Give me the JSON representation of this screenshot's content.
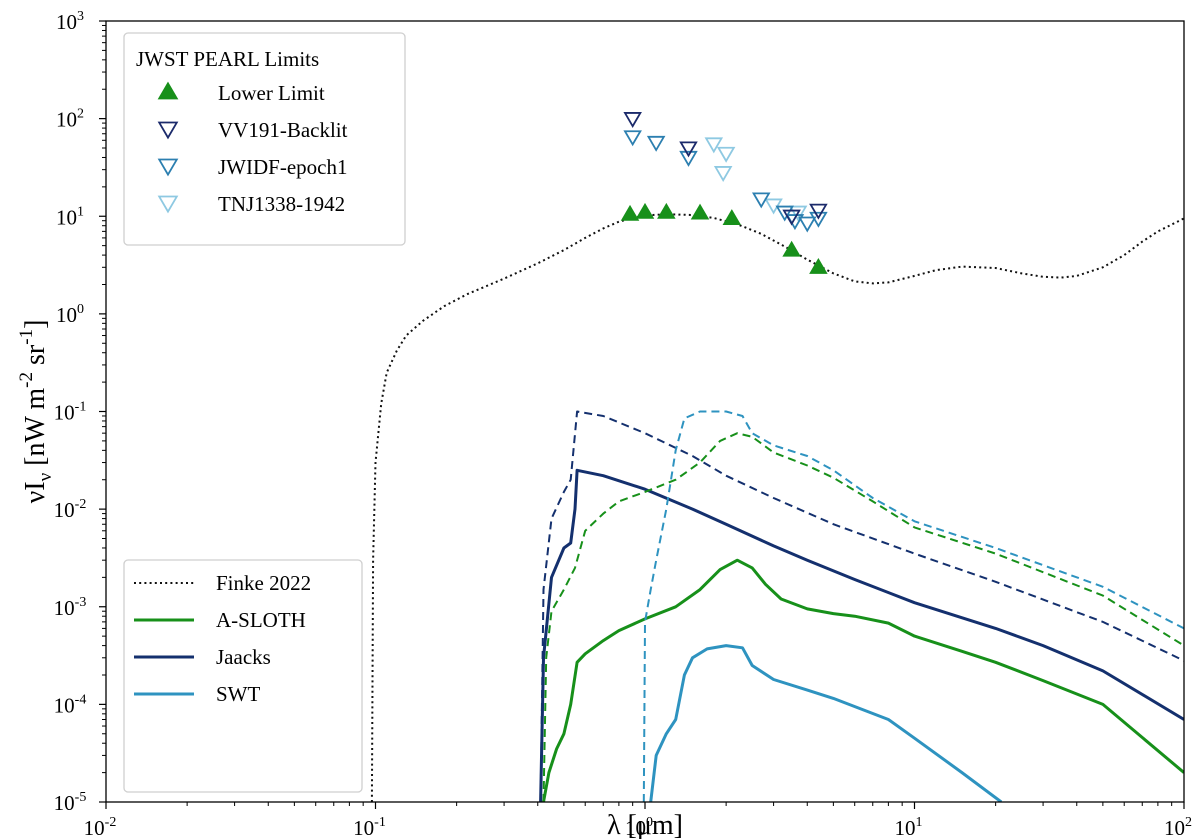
{
  "chart_data": {
    "type": "line",
    "xscale": "log",
    "yscale": "log",
    "xlim": [
      0.01,
      100
    ],
    "ylim": [
      1e-05,
      1000
    ],
    "xlabel": "λ [μm]",
    "ylabel": "νI_ν [nW m^-2 sr^-1]",
    "x_ticks": [
      {
        "base": "10",
        "exp": "-2",
        "value": 0.01
      },
      {
        "base": "10",
        "exp": "-1",
        "value": 0.1
      },
      {
        "base": "10",
        "exp": "0",
        "value": 1
      },
      {
        "base": "10",
        "exp": "1",
        "value": 10
      },
      {
        "base": "10",
        "exp": "2",
        "value": 100
      }
    ],
    "y_ticks": [
      {
        "base": "10",
        "exp": "-5",
        "value": 1e-05
      },
      {
        "base": "10",
        "exp": "-4",
        "value": 0.0001
      },
      {
        "base": "10",
        "exp": "-3",
        "value": 0.001
      },
      {
        "base": "10",
        "exp": "-2",
        "value": 0.01
      },
      {
        "base": "10",
        "exp": "-1",
        "value": 0.1
      },
      {
        "base": "10",
        "exp": "0",
        "value": 1
      },
      {
        "base": "10",
        "exp": "1",
        "value": 10
      },
      {
        "base": "10",
        "exp": "2",
        "value": 100
      },
      {
        "base": "10",
        "exp": "3",
        "value": 1000
      }
    ],
    "legend_top": {
      "title": "JWST PEARL Limits",
      "placement": "upper-left",
      "entries": [
        "Lower Limit",
        "VV191-Backlit",
        "JWIDF-epoch1",
        "TNJ1338-1942"
      ]
    },
    "legend_bottom": {
      "placement": "lower-left",
      "entries": [
        "Finke 2022",
        "A-SLOTH",
        "Jaacks",
        "SWT"
      ]
    },
    "colors": {
      "finke": "#111111",
      "asloth": "#17901a",
      "jaacks": "#14306e",
      "swt": "#2e93c0",
      "vv191": "#1b2a6b",
      "jwidf": "#2c7fb0",
      "tnj": "#8ec9e2",
      "lower": "#17901a"
    },
    "series": [
      {
        "name": "Finke 2022",
        "style": "dotted",
        "color_key": "finke",
        "points": [
          [
            0.097,
            1e-05
          ],
          [
            0.098,
            0.003
          ],
          [
            0.1,
            0.03
          ],
          [
            0.105,
            0.12
          ],
          [
            0.11,
            0.25
          ],
          [
            0.12,
            0.42
          ],
          [
            0.13,
            0.6
          ],
          [
            0.15,
            0.85
          ],
          [
            0.18,
            1.2
          ],
          [
            0.22,
            1.6
          ],
          [
            0.3,
            2.3
          ],
          [
            0.4,
            3.3
          ],
          [
            0.5,
            4.5
          ],
          [
            0.6,
            6
          ],
          [
            0.7,
            7.5
          ],
          [
            0.8,
            8.8
          ],
          [
            0.9,
            9.6
          ],
          [
            1.0,
            10.2
          ],
          [
            1.2,
            10.5
          ],
          [
            1.5,
            10.3
          ],
          [
            1.8,
            9.6
          ],
          [
            2.2,
            8.3
          ],
          [
            2.7,
            6.6
          ],
          [
            3.3,
            4.9
          ],
          [
            4.0,
            3.6
          ],
          [
            5.0,
            2.6
          ],
          [
            6.0,
            2.15
          ],
          [
            7.0,
            2.05
          ],
          [
            8.0,
            2.1
          ],
          [
            10,
            2.45
          ],
          [
            12,
            2.8
          ],
          [
            15,
            3.05
          ],
          [
            20,
            2.95
          ],
          [
            25,
            2.6
          ],
          [
            30,
            2.4
          ],
          [
            35,
            2.35
          ],
          [
            40,
            2.45
          ],
          [
            50,
            3.0
          ],
          [
            60,
            4.0
          ],
          [
            70,
            5.5
          ],
          [
            80,
            7.0
          ],
          [
            100,
            9.5
          ]
        ]
      },
      {
        "name": "A-SLOTH",
        "style": "solid",
        "color_key": "asloth",
        "points": [
          [
            0.42,
            1e-05
          ],
          [
            0.44,
            2e-05
          ],
          [
            0.47,
            3.5e-05
          ],
          [
            0.5,
            5e-05
          ],
          [
            0.53,
            0.0001
          ],
          [
            0.56,
            0.00027
          ],
          [
            0.6,
            0.00033
          ],
          [
            0.7,
            0.00045
          ],
          [
            0.8,
            0.00057
          ],
          [
            1.0,
            0.00075
          ],
          [
            1.3,
            0.001
          ],
          [
            1.6,
            0.0015
          ],
          [
            1.9,
            0.0024
          ],
          [
            2.2,
            0.003
          ],
          [
            2.5,
            0.0025
          ],
          [
            2.8,
            0.0017
          ],
          [
            3.2,
            0.0012
          ],
          [
            4.0,
            0.00095
          ],
          [
            5.0,
            0.00085
          ],
          [
            6.0,
            0.0008
          ],
          [
            8.0,
            0.00068
          ],
          [
            10,
            0.0005
          ],
          [
            15,
            0.00035
          ],
          [
            20,
            0.00027
          ],
          [
            30,
            0.000175
          ],
          [
            50,
            0.0001
          ],
          [
            100,
            2e-05
          ]
        ]
      },
      {
        "name": "Jaacks",
        "style": "solid",
        "color_key": "jaacks",
        "points": [
          [
            0.41,
            1e-05
          ],
          [
            0.42,
            0.0003
          ],
          [
            0.45,
            0.002
          ],
          [
            0.5,
            0.004
          ],
          [
            0.53,
            0.0045
          ],
          [
            0.55,
            0.01
          ],
          [
            0.56,
            0.025
          ],
          [
            0.7,
            0.022
          ],
          [
            1.0,
            0.016
          ],
          [
            1.5,
            0.01
          ],
          [
            2.0,
            0.007
          ],
          [
            3.0,
            0.0042
          ],
          [
            4.0,
            0.003
          ],
          [
            6.0,
            0.0019
          ],
          [
            10,
            0.0011
          ],
          [
            20,
            0.0006
          ],
          [
            30,
            0.0004
          ],
          [
            50,
            0.00022
          ],
          [
            100,
            7e-05
          ]
        ]
      },
      {
        "name": "SWT",
        "style": "solid",
        "color_key": "swt",
        "points": [
          [
            1.05,
            1e-05
          ],
          [
            1.1,
            3e-05
          ],
          [
            1.2,
            5e-05
          ],
          [
            1.3,
            7e-05
          ],
          [
            1.4,
            0.0002
          ],
          [
            1.5,
            0.0003
          ],
          [
            1.7,
            0.00037
          ],
          [
            2.0,
            0.0004
          ],
          [
            2.3,
            0.00038
          ],
          [
            2.5,
            0.00025
          ],
          [
            3.0,
            0.00018
          ],
          [
            4.0,
            0.00014
          ],
          [
            5.0,
            0.000115
          ],
          [
            8.0,
            7e-05
          ],
          [
            10,
            4.5e-05
          ],
          [
            15,
            2e-05
          ],
          [
            21,
            1e-05
          ]
        ]
      },
      {
        "name": "A-SLOTH (dashed)",
        "style": "dashed",
        "color_key": "asloth",
        "points": [
          [
            0.42,
            1e-05
          ],
          [
            0.43,
            0.0003
          ],
          [
            0.45,
            0.0009
          ],
          [
            0.5,
            0.0015
          ],
          [
            0.55,
            0.0025
          ],
          [
            0.6,
            0.006
          ],
          [
            0.7,
            0.009
          ],
          [
            0.8,
            0.012
          ],
          [
            1.0,
            0.015
          ],
          [
            1.3,
            0.02
          ],
          [
            1.6,
            0.03
          ],
          [
            1.9,
            0.05
          ],
          [
            2.2,
            0.06
          ],
          [
            2.5,
            0.055
          ],
          [
            3.0,
            0.038
          ],
          [
            4.0,
            0.028
          ],
          [
            5.0,
            0.021
          ],
          [
            7.0,
            0.012
          ],
          [
            10,
            0.0065
          ],
          [
            20,
            0.0035
          ],
          [
            50,
            0.0013
          ],
          [
            100,
            0.0004
          ]
        ]
      },
      {
        "name": "Jaacks (dashed)",
        "style": "dashed",
        "color_key": "jaacks",
        "points": [
          [
            0.41,
            1e-05
          ],
          [
            0.42,
            0.0015
          ],
          [
            0.45,
            0.008
          ],
          [
            0.5,
            0.015
          ],
          [
            0.53,
            0.02
          ],
          [
            0.56,
            0.1
          ],
          [
            0.7,
            0.09
          ],
          [
            1.0,
            0.06
          ],
          [
            1.5,
            0.035
          ],
          [
            2.0,
            0.022
          ],
          [
            3.0,
            0.013
          ],
          [
            5.0,
            0.007
          ],
          [
            10,
            0.0035
          ],
          [
            20,
            0.0018
          ],
          [
            50,
            0.0007
          ],
          [
            100,
            0.00028
          ]
        ]
      },
      {
        "name": "SWT (dashed)",
        "style": "dashed",
        "color_key": "swt",
        "points": [
          [
            0.99,
            1e-05
          ],
          [
            1.0,
            0.0007
          ],
          [
            1.05,
            0.0015
          ],
          [
            1.1,
            0.003
          ],
          [
            1.2,
            0.01
          ],
          [
            1.3,
            0.04
          ],
          [
            1.4,
            0.085
          ],
          [
            1.6,
            0.1
          ],
          [
            2.0,
            0.1
          ],
          [
            2.3,
            0.09
          ],
          [
            2.5,
            0.06
          ],
          [
            3.0,
            0.045
          ],
          [
            4.0,
            0.035
          ],
          [
            5.0,
            0.025
          ],
          [
            7.0,
            0.013
          ],
          [
            10,
            0.0075
          ],
          [
            20,
            0.004
          ],
          [
            50,
            0.0016
          ],
          [
            100,
            0.0006
          ]
        ]
      }
    ],
    "markers": {
      "lower_limit": [
        [
          0.88,
          10.5
        ],
        [
          1.0,
          11
        ],
        [
          1.2,
          11
        ],
        [
          1.6,
          10.8
        ],
        [
          2.1,
          9.5
        ],
        [
          3.5,
          4.5
        ],
        [
          4.4,
          3.0
        ]
      ],
      "vv191": [
        [
          0.9,
          100
        ],
        [
          1.45,
          50
        ],
        [
          3.5,
          10
        ],
        [
          4.4,
          11.5
        ]
      ],
      "jwidf": [
        [
          0.9,
          65
        ],
        [
          1.1,
          57
        ],
        [
          1.45,
          40
        ],
        [
          2.7,
          15
        ],
        [
          3.3,
          11
        ],
        [
          3.6,
          9
        ],
        [
          4.0,
          8.5
        ],
        [
          4.4,
          9.5
        ]
      ],
      "tnj": [
        [
          1.8,
          55
        ],
        [
          2.0,
          44
        ],
        [
          1.95,
          28
        ],
        [
          3.0,
          13
        ],
        [
          3.7,
          11
        ]
      ]
    }
  }
}
